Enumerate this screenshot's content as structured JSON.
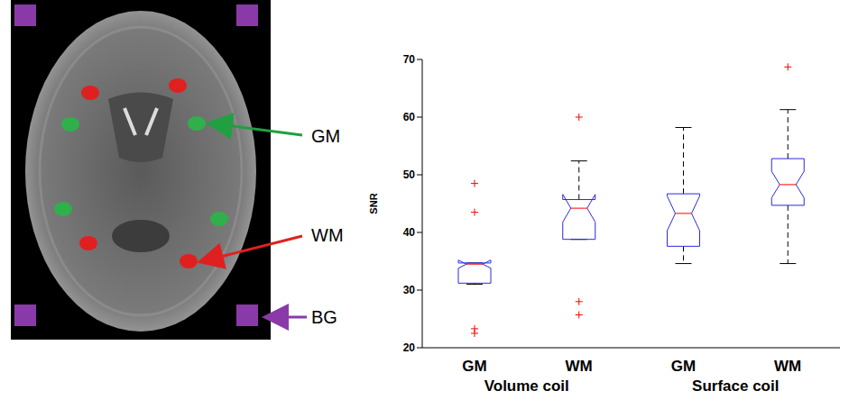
{
  "figure": {
    "labels": [
      {
        "text": "GM",
        "color": "#20a040"
      },
      {
        "text": "WM",
        "color": "#e02020"
      },
      {
        "text": "BG",
        "color": "#8a3aa8"
      }
    ]
  },
  "chart_data": {
    "type": "box",
    "categories": [
      "GM",
      "WM",
      "GM",
      "WM"
    ],
    "groups": [
      "Volume coil",
      "Surface coil"
    ],
    "y_label": "SNR",
    "ylim": [
      20,
      70
    ],
    "yticks": [
      20,
      30,
      40,
      50,
      60,
      70
    ],
    "grid": false,
    "color": "#2a2ae0",
    "boxes": [
      {
        "whisker_low": 31.0,
        "q1": 31.2,
        "median": 34.5,
        "q3": 34.7,
        "whisker_high": 34.7,
        "notch_low": 33.8,
        "notch_high": 35.2,
        "outliers": [
          48.5,
          43.5,
          23.3,
          22.5
        ]
      },
      {
        "whisker_low": 38.8,
        "q1": 38.8,
        "median": 44.2,
        "q3": 45.7,
        "whisker_high": 52.4,
        "notch_low": 41.8,
        "notch_high": 46.6,
        "outliers": [
          60.0,
          28.0,
          25.7
        ]
      },
      {
        "whisker_low": 34.6,
        "q1": 37.6,
        "median": 43.3,
        "q3": 46.7,
        "whisker_high": 58.2,
        "notch_low": 40.3,
        "notch_high": 46.3,
        "outliers": []
      },
      {
        "whisker_low": 34.6,
        "q1": 44.7,
        "median": 48.3,
        "q3": 52.8,
        "whisker_high": 61.3,
        "notch_low": 46.0,
        "notch_high": 50.6,
        "outliers": [
          68.7
        ]
      }
    ]
  }
}
